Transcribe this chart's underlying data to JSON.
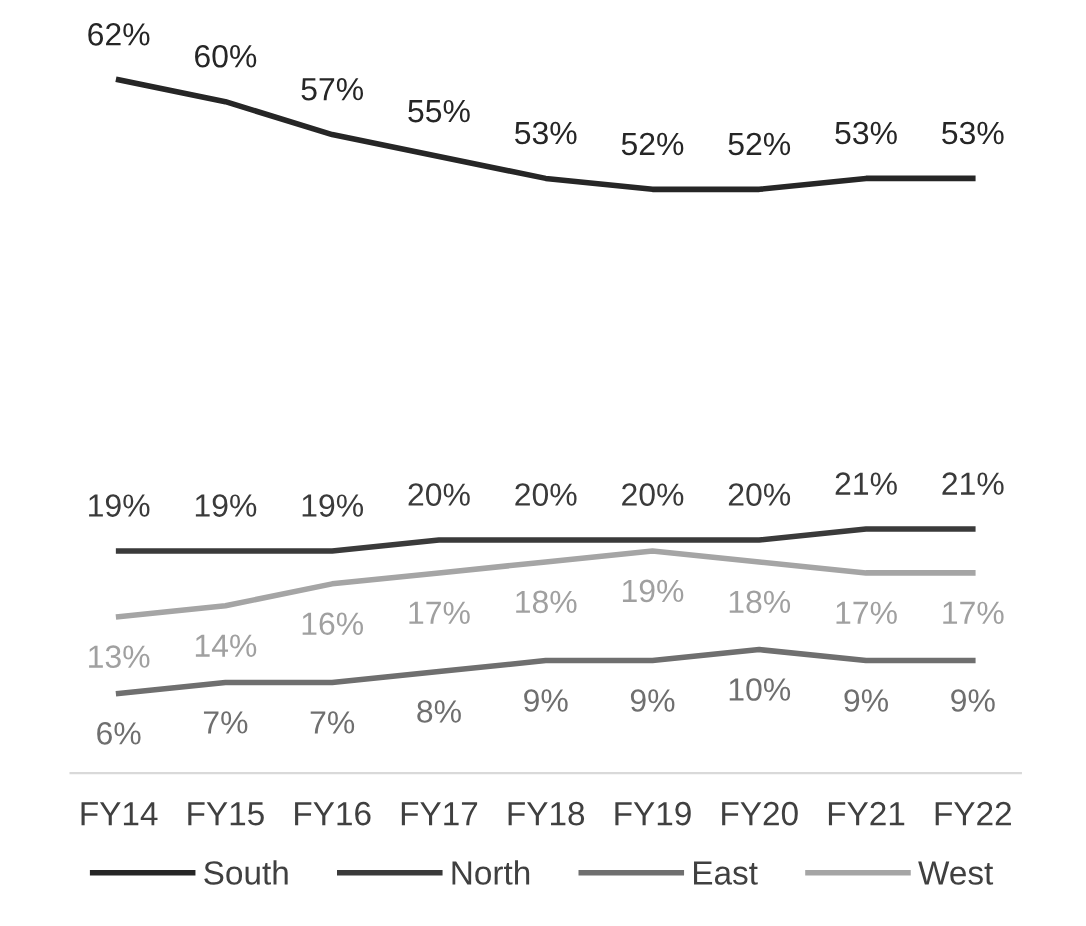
{
  "chart_data": {
    "type": "line",
    "categories": [
      "FY14",
      "FY15",
      "FY16",
      "FY17",
      "FY18",
      "FY19",
      "FY20",
      "FY21",
      "FY22"
    ],
    "series": [
      {
        "name": "South",
        "color": "#262626",
        "values": [
          62,
          60,
          57,
          55,
          53,
          52,
          52,
          53,
          53
        ],
        "value_labels": [
          "62%",
          "60%",
          "57%",
          "55%",
          "53%",
          "52%",
          "52%",
          "53%",
          "53%"
        ]
      },
      {
        "name": "North",
        "color": "#3a3a3a",
        "values": [
          19,
          19,
          19,
          20,
          20,
          20,
          20,
          21,
          21
        ],
        "value_labels": [
          "19%",
          "19%",
          "19%",
          "20%",
          "20%",
          "20%",
          "20%",
          "21%",
          "21%"
        ]
      },
      {
        "name": "East",
        "color": "#6f6f6f",
        "values": [
          6,
          7,
          7,
          8,
          9,
          9,
          10,
          9,
          9
        ],
        "value_labels": [
          "6%",
          "7%",
          "7%",
          "8%",
          "9%",
          "9%",
          "10%",
          "9%",
          "9%"
        ]
      },
      {
        "name": "West",
        "color": "#a5a5a5",
        "values": [
          13,
          14,
          16,
          17,
          18,
          19,
          18,
          17,
          17
        ],
        "value_labels": [
          "13%",
          "14%",
          "16%",
          "17%",
          "18%",
          "19%",
          "18%",
          "17%",
          "17%"
        ]
      }
    ],
    "tick_labels": "x",
    "grid": false,
    "legend": "bottom",
    "marker": "none",
    "line_style": "solid"
  }
}
